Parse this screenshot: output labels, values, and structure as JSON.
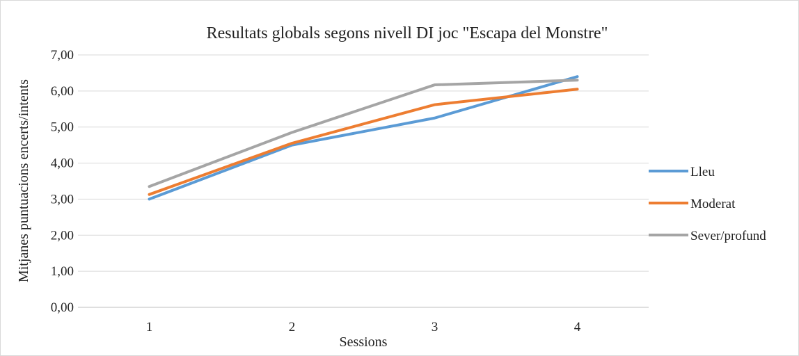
{
  "chart_data": {
    "type": "line",
    "title": "Resultats globals segons nivell DI joc \"Escapa del Monstre\"",
    "xlabel": "Sessions",
    "ylabel": "Mitjanes puntuacions encerts/intents",
    "categories": [
      "1",
      "2",
      "3",
      "4"
    ],
    "ylim": [
      0,
      7
    ],
    "yticks": [
      "0,00",
      "1,00",
      "2,00",
      "3,00",
      "4,00",
      "5,00",
      "6,00",
      "7,00"
    ],
    "grid": true,
    "legend_position": "right",
    "series": [
      {
        "name": "Lleu",
        "color": "#5b9bd5",
        "values": [
          3.0,
          4.5,
          5.25,
          6.4
        ]
      },
      {
        "name": "Moderat",
        "color": "#ed7d31",
        "values": [
          3.13,
          4.55,
          5.62,
          6.05
        ]
      },
      {
        "name": "Sever/profund",
        "color": "#a5a5a5",
        "values": [
          3.35,
          4.85,
          6.17,
          6.3
        ]
      }
    ]
  }
}
